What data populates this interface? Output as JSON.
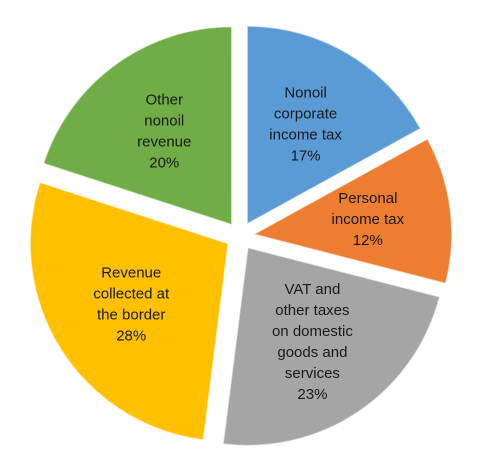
{
  "chart_data": {
    "type": "pie",
    "categories": [
      "Nonoil corporate income tax",
      "Personal income tax",
      "VAT and other taxes on domestic goods and services",
      "Revenue collected at the border",
      "Other nonoil revenue"
    ],
    "values": [
      17,
      12,
      23,
      28,
      20
    ],
    "value_labels": [
      "17%",
      "12%",
      "23%",
      "28%",
      "20%"
    ],
    "colors": [
      "#5b9bd5",
      "#ed7d31",
      "#a5a5a5",
      "#ffc000",
      "#70ad47"
    ]
  }
}
